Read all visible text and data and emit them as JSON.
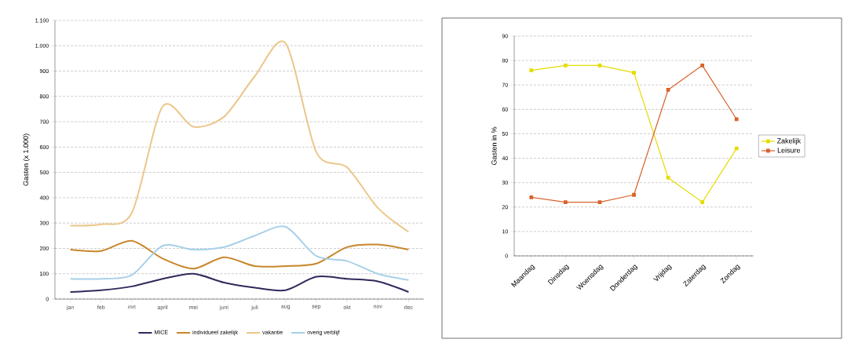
{
  "chart_data": [
    {
      "type": "line",
      "ylabel": "Gasten (x 1.000)",
      "categories": [
        "jan",
        "feb",
        "mrt",
        "april",
        "mei",
        "juni",
        "juli",
        "aug",
        "sep",
        "okt",
        "nov",
        "dec"
      ],
      "series": [
        {
          "name": "MICE",
          "color": "#2e2a5a",
          "values": [
            28,
            35,
            50,
            80,
            100,
            65,
            45,
            35,
            88,
            80,
            70,
            28
          ]
        },
        {
          "name": "individueel zakelijk",
          "color": "#c8862a",
          "values": [
            195,
            190,
            230,
            160,
            120,
            165,
            130,
            130,
            140,
            205,
            215,
            195
          ]
        },
        {
          "name": "vakantie",
          "color": "#ecc68a",
          "values": [
            290,
            295,
            340,
            760,
            680,
            720,
            880,
            1010,
            580,
            520,
            360,
            265
          ]
        },
        {
          "name": "overig verblijf",
          "color": "#a7d0e8",
          "values": [
            80,
            80,
            95,
            210,
            195,
            205,
            250,
            285,
            170,
            150,
            100,
            75
          ]
        }
      ],
      "ylim": [
        0,
        1100
      ],
      "yticks": [
        0,
        100,
        200,
        300,
        400,
        500,
        600,
        700,
        800,
        900,
        {
          "value": 1000,
          "label": "1.000"
        },
        {
          "value": 1100,
          "label": "1.100"
        }
      ],
      "grid": "y",
      "legend": "bottom"
    },
    {
      "type": "line",
      "ylabel": "Gasten in %",
      "categories": [
        "Maandag",
        "Dinsdag",
        "Woensdag",
        "Donderdag",
        "Vrijdag",
        "Zaterdag",
        "Zondag"
      ],
      "series": [
        {
          "name": "Zakelijk",
          "color": "#e6dc00",
          "values": [
            76,
            78,
            78,
            75,
            32,
            22,
            44
          ]
        },
        {
          "name": "Leisure",
          "color": "#d9622b",
          "values": [
            24,
            22,
            22,
            25,
            68,
            78,
            56
          ]
        }
      ],
      "ylim": [
        0,
        90
      ],
      "yticks": [
        0,
        10,
        20,
        30,
        40,
        50,
        60,
        70,
        80,
        90
      ],
      "grid": "y",
      "legend": "right",
      "marker": "square"
    }
  ]
}
